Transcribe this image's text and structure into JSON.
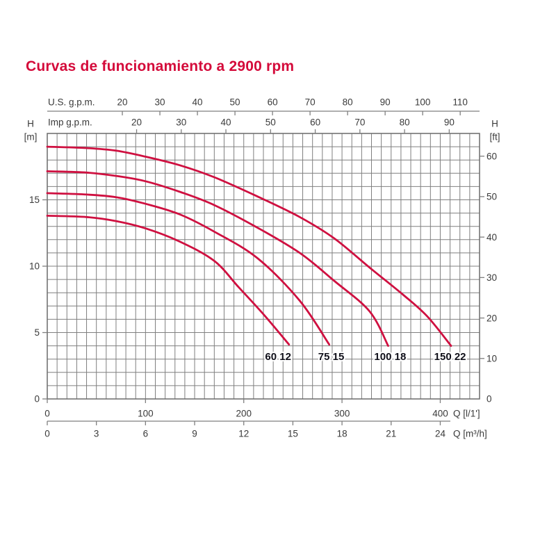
{
  "title": "Curvas de funcionamiento a 2900 rpm",
  "chart_data": {
    "type": "line",
    "title": "Curvas de funcionamiento a 2900 rpm",
    "grid": true,
    "x_axis_bottom": {
      "label": "Q [l/1']",
      "ticks": [
        0,
        100,
        200,
        300,
        400
      ],
      "range": [
        0,
        440
      ],
      "minor_step": 10
    },
    "x_axis_bottom_secondary": {
      "label": "Q [m³/h]",
      "ticks": [
        0,
        3,
        6,
        9,
        12,
        15,
        18,
        21,
        24
      ],
      "unit_to_lmin": 16.6667
    },
    "x_axis_top": {
      "label": "U.S. g.p.m.",
      "ticks": [
        20,
        30,
        40,
        50,
        60,
        70,
        80,
        90,
        100,
        110
      ],
      "unit_to_lmin": 3.821
    },
    "x_axis_top_secondary": {
      "label": "Imp g.p.m.",
      "ticks": [
        20,
        30,
        40,
        50,
        60,
        70,
        80,
        90
      ],
      "unit_to_lmin": 4.546
    },
    "y_axis_left": {
      "label_line1": "H",
      "label_line2": "[m]",
      "ticks": [
        0,
        5,
        10,
        15
      ],
      "range": [
        0,
        20
      ],
      "minor_step": 1
    },
    "y_axis_right": {
      "label_line1": "H",
      "label_line2": "[ft]",
      "ticks": [
        0,
        10,
        20,
        30,
        40,
        50,
        60
      ],
      "unit_to_m": 0.3048
    },
    "series": [
      {
        "name": "60 12",
        "label_q": 235,
        "label_h": 3.2,
        "points": [
          [
            0,
            13.8
          ],
          [
            40,
            13.7
          ],
          [
            70,
            13.4
          ],
          [
            100,
            12.85
          ],
          [
            135,
            11.85
          ],
          [
            170,
            10.4
          ],
          [
            195,
            8.4
          ],
          [
            221,
            6.3
          ],
          [
            246,
            4.1
          ]
        ]
      },
      {
        "name": "75 15",
        "label_q": 289,
        "label_h": 3.2,
        "points": [
          [
            0,
            15.5
          ],
          [
            40,
            15.4
          ],
          [
            70,
            15.2
          ],
          [
            100,
            14.7
          ],
          [
            135,
            13.9
          ],
          [
            170,
            12.6
          ],
          [
            214,
            10.6
          ],
          [
            257,
            7.4
          ],
          [
            287,
            4.1
          ]
        ]
      },
      {
        "name": "100 18",
        "label_q": 349,
        "label_h": 3.2,
        "points": [
          [
            0,
            17.15
          ],
          [
            40,
            17.05
          ],
          [
            70,
            16.8
          ],
          [
            100,
            16.4
          ],
          [
            135,
            15.6
          ],
          [
            170,
            14.6
          ],
          [
            214,
            12.9
          ],
          [
            257,
            11.0
          ],
          [
            292,
            8.9
          ],
          [
            328,
            6.6
          ],
          [
            347,
            4.0
          ]
        ]
      },
      {
        "name": "150 22",
        "label_q": 410,
        "label_h": 3.2,
        "points": [
          [
            0,
            19.0
          ],
          [
            40,
            18.9
          ],
          [
            70,
            18.7
          ],
          [
            100,
            18.25
          ],
          [
            135,
            17.6
          ],
          [
            170,
            16.7
          ],
          [
            214,
            15.25
          ],
          [
            257,
            13.7
          ],
          [
            292,
            12.1
          ],
          [
            328,
            9.9
          ],
          [
            363,
            7.8
          ],
          [
            387,
            6.2
          ],
          [
            411,
            4.0
          ]
        ]
      }
    ],
    "colors": {
      "title": "#d40a3a",
      "curve": "#cf1040",
      "grid": "#7f7f7f",
      "border": "#6a6a6a",
      "axis_text": "#3a3a3a",
      "series_label": "#10101a"
    }
  }
}
